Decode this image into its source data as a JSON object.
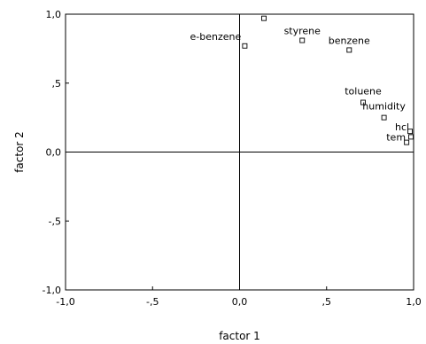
{
  "chart_data": {
    "type": "scatter",
    "xlabel": "factor 1",
    "ylabel": "factor 2",
    "xlim": [
      -1.0,
      1.0
    ],
    "ylim": [
      -1.0,
      1.0
    ],
    "grid": false,
    "reference_lines": {
      "x": 0,
      "y": 0
    },
    "x_ticks": [
      -1.0,
      -0.5,
      0.0,
      0.5,
      1.0
    ],
    "y_ticks": [
      -1.0,
      -0.5,
      0.0,
      0.5,
      1.0
    ],
    "x_tick_labels": [
      "-1,0",
      "-,5",
      "0,0",
      ",5",
      "1,0"
    ],
    "y_tick_labels": [
      "-1,0",
      "-,5",
      "0,0",
      ",5",
      "1,0"
    ],
    "marker": "hollow-square",
    "points": [
      {
        "label": "",
        "x": 0.14,
        "y": 0.97
      },
      {
        "label": "e-benzene",
        "x": 0.03,
        "y": 0.77
      },
      {
        "label": "styrene",
        "x": 0.36,
        "y": 0.81
      },
      {
        "label": "benzene",
        "x": 0.63,
        "y": 0.74
      },
      {
        "label": "toluene",
        "x": 0.71,
        "y": 0.36
      },
      {
        "label": "humidity",
        "x": 0.83,
        "y": 0.25
      },
      {
        "label": "hcl",
        "x": 0.98,
        "y": 0.15
      },
      {
        "label": "tem",
        "x": 0.96,
        "y": 0.07
      },
      {
        "label": "",
        "x": 0.985,
        "y": 0.11
      }
    ]
  }
}
